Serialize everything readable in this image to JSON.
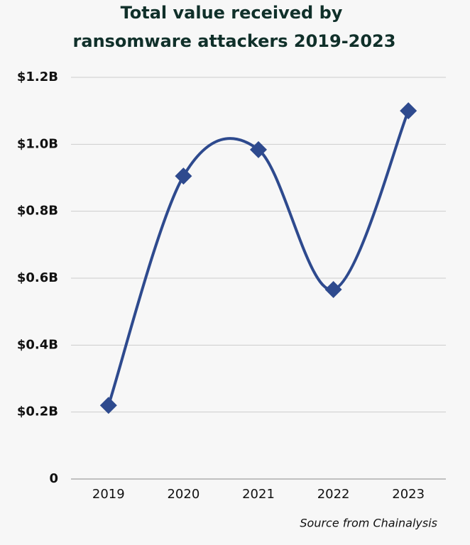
{
  "chart_data": {
    "type": "line",
    "title": [
      "Total value received by",
      "ransomware attackers 2019-2023"
    ],
    "categories": [
      "2019",
      "2020",
      "2021",
      "2022",
      "2023"
    ],
    "series": [
      {
        "name": "Total value received",
        "color": "#2e4a8e",
        "values": [
          0.22,
          0.905,
          0.984,
          0.566,
          1.1
        ]
      }
    ],
    "ylim": [
      0,
      1.2
    ],
    "yticks": [
      0,
      {
        "value": 0.2,
        "label": "$0.2B"
      },
      {
        "value": 0.4,
        "label": "$0.4B"
      },
      {
        "value": 0.6,
        "label": "$0.6B"
      },
      {
        "value": 0.8,
        "label": "$0.8B"
      },
      {
        "value": 1.0,
        "label": "$1.0B"
      },
      {
        "value": 1.2,
        "label": "$1.2B"
      }
    ],
    "grid": true,
    "smooth": true,
    "marker": "diamond",
    "annotation": "Source from Chainalysis"
  }
}
